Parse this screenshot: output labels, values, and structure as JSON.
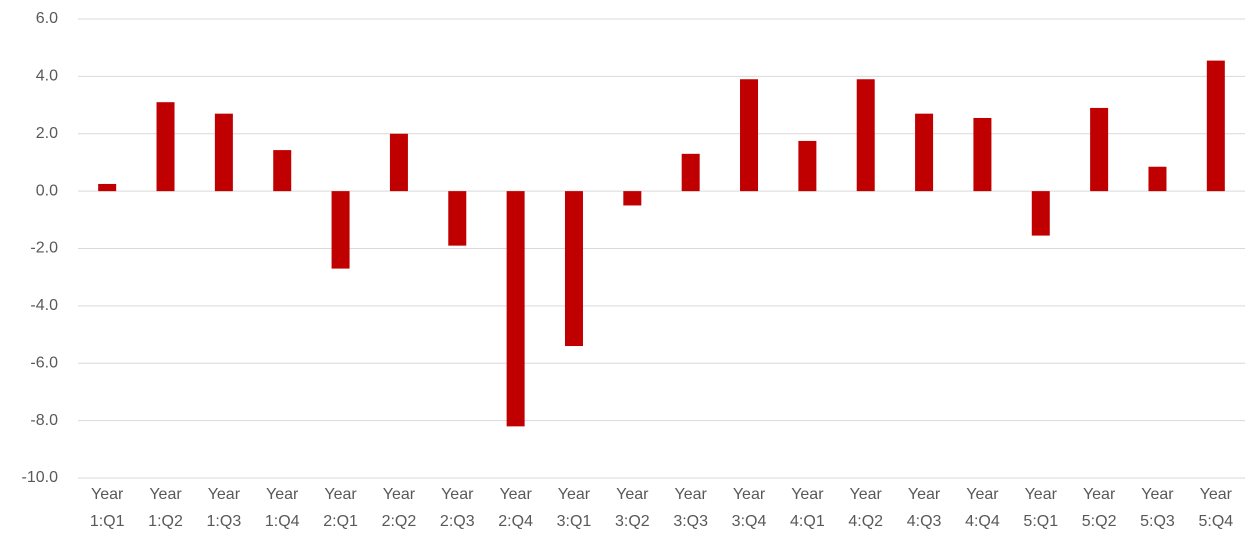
{
  "chart_data": {
    "type": "bar",
    "categories": [
      "Year 1:Q1",
      "Year 1:Q2",
      "Year 1:Q3",
      "Year 1:Q4",
      "Year 2:Q1",
      "Year 2:Q2",
      "Year 2:Q3",
      "Year 2:Q4",
      "Year 3:Q1",
      "Year 3:Q2",
      "Year 3:Q3",
      "Year 3:Q4",
      "Year 4:Q1",
      "Year 4:Q2",
      "Year 4:Q3",
      "Year 4:Q4",
      "Year 5:Q1",
      "Year 5:Q2",
      "Year 5:Q3",
      "Year 5:Q4"
    ],
    "values": [
      0.25,
      3.1,
      2.7,
      1.43,
      -2.7,
      2.0,
      -1.9,
      -8.2,
      -5.4,
      -0.5,
      1.3,
      3.9,
      1.75,
      3.9,
      2.7,
      2.55,
      -1.55,
      2.9,
      0.85,
      4.55
    ],
    "color": "#c00000",
    "ylim": [
      -10,
      6
    ],
    "yticks": [
      {
        "value": -10,
        "label": "-10.0"
      },
      {
        "value": -8,
        "label": "-8.0"
      },
      {
        "value": -6,
        "label": "-6.0"
      },
      {
        "value": -4,
        "label": "-4.0"
      },
      {
        "value": -2,
        "label": "-2.0"
      },
      {
        "value": 0,
        "label": "0.0"
      },
      {
        "value": 2,
        "label": "2.0"
      },
      {
        "value": 4,
        "label": "4.0"
      },
      {
        "value": 6,
        "label": "6.0"
      }
    ],
    "grid": true
  }
}
